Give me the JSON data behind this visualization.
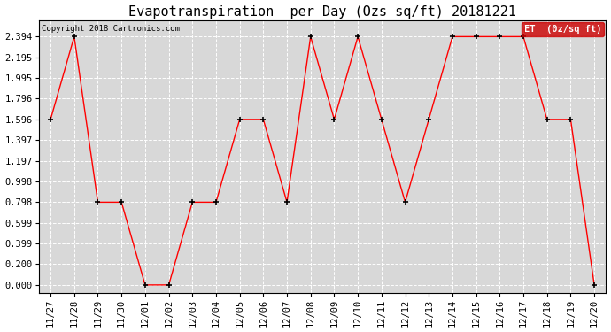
{
  "title": "Evapotranspiration  per Day (Ozs sq/ft) 20181221",
  "copyright_text": "Copyright 2018 Cartronics.com",
  "legend_label": "ET  (0z/sq ft)",
  "dates": [
    "11/27",
    "11/28",
    "11/29",
    "11/30",
    "12/01",
    "12/02",
    "12/03",
    "12/04",
    "12/05",
    "12/06",
    "12/07",
    "12/08",
    "12/09",
    "12/10",
    "12/11",
    "12/12",
    "12/13",
    "12/14",
    "12/15",
    "12/16",
    "12/17",
    "12/18",
    "12/19",
    "12/20"
  ],
  "values": [
    1.596,
    2.394,
    0.798,
    0.798,
    0.0,
    0.0,
    0.798,
    0.798,
    1.596,
    1.596,
    0.798,
    2.394,
    1.596,
    2.394,
    1.596,
    0.798,
    1.596,
    2.394,
    2.394,
    2.394,
    2.394,
    1.596,
    1.596,
    0.0
  ],
  "yticks": [
    0.0,
    0.2,
    0.399,
    0.599,
    0.798,
    0.998,
    1.197,
    1.397,
    1.596,
    1.796,
    1.995,
    2.195,
    2.394
  ],
  "line_color": "#ff0000",
  "marker_color": "#000000",
  "bg_color": "#ffffff",
  "plot_bg_color": "#d8d8d8",
  "grid_color": "#ffffff",
  "title_fontsize": 11,
  "tick_fontsize": 7.5,
  "copyright_fontsize": 6.5,
  "legend_bg_color": "#cc0000",
  "legend_text_color": "#ffffff",
  "legend_fontsize": 7.5
}
